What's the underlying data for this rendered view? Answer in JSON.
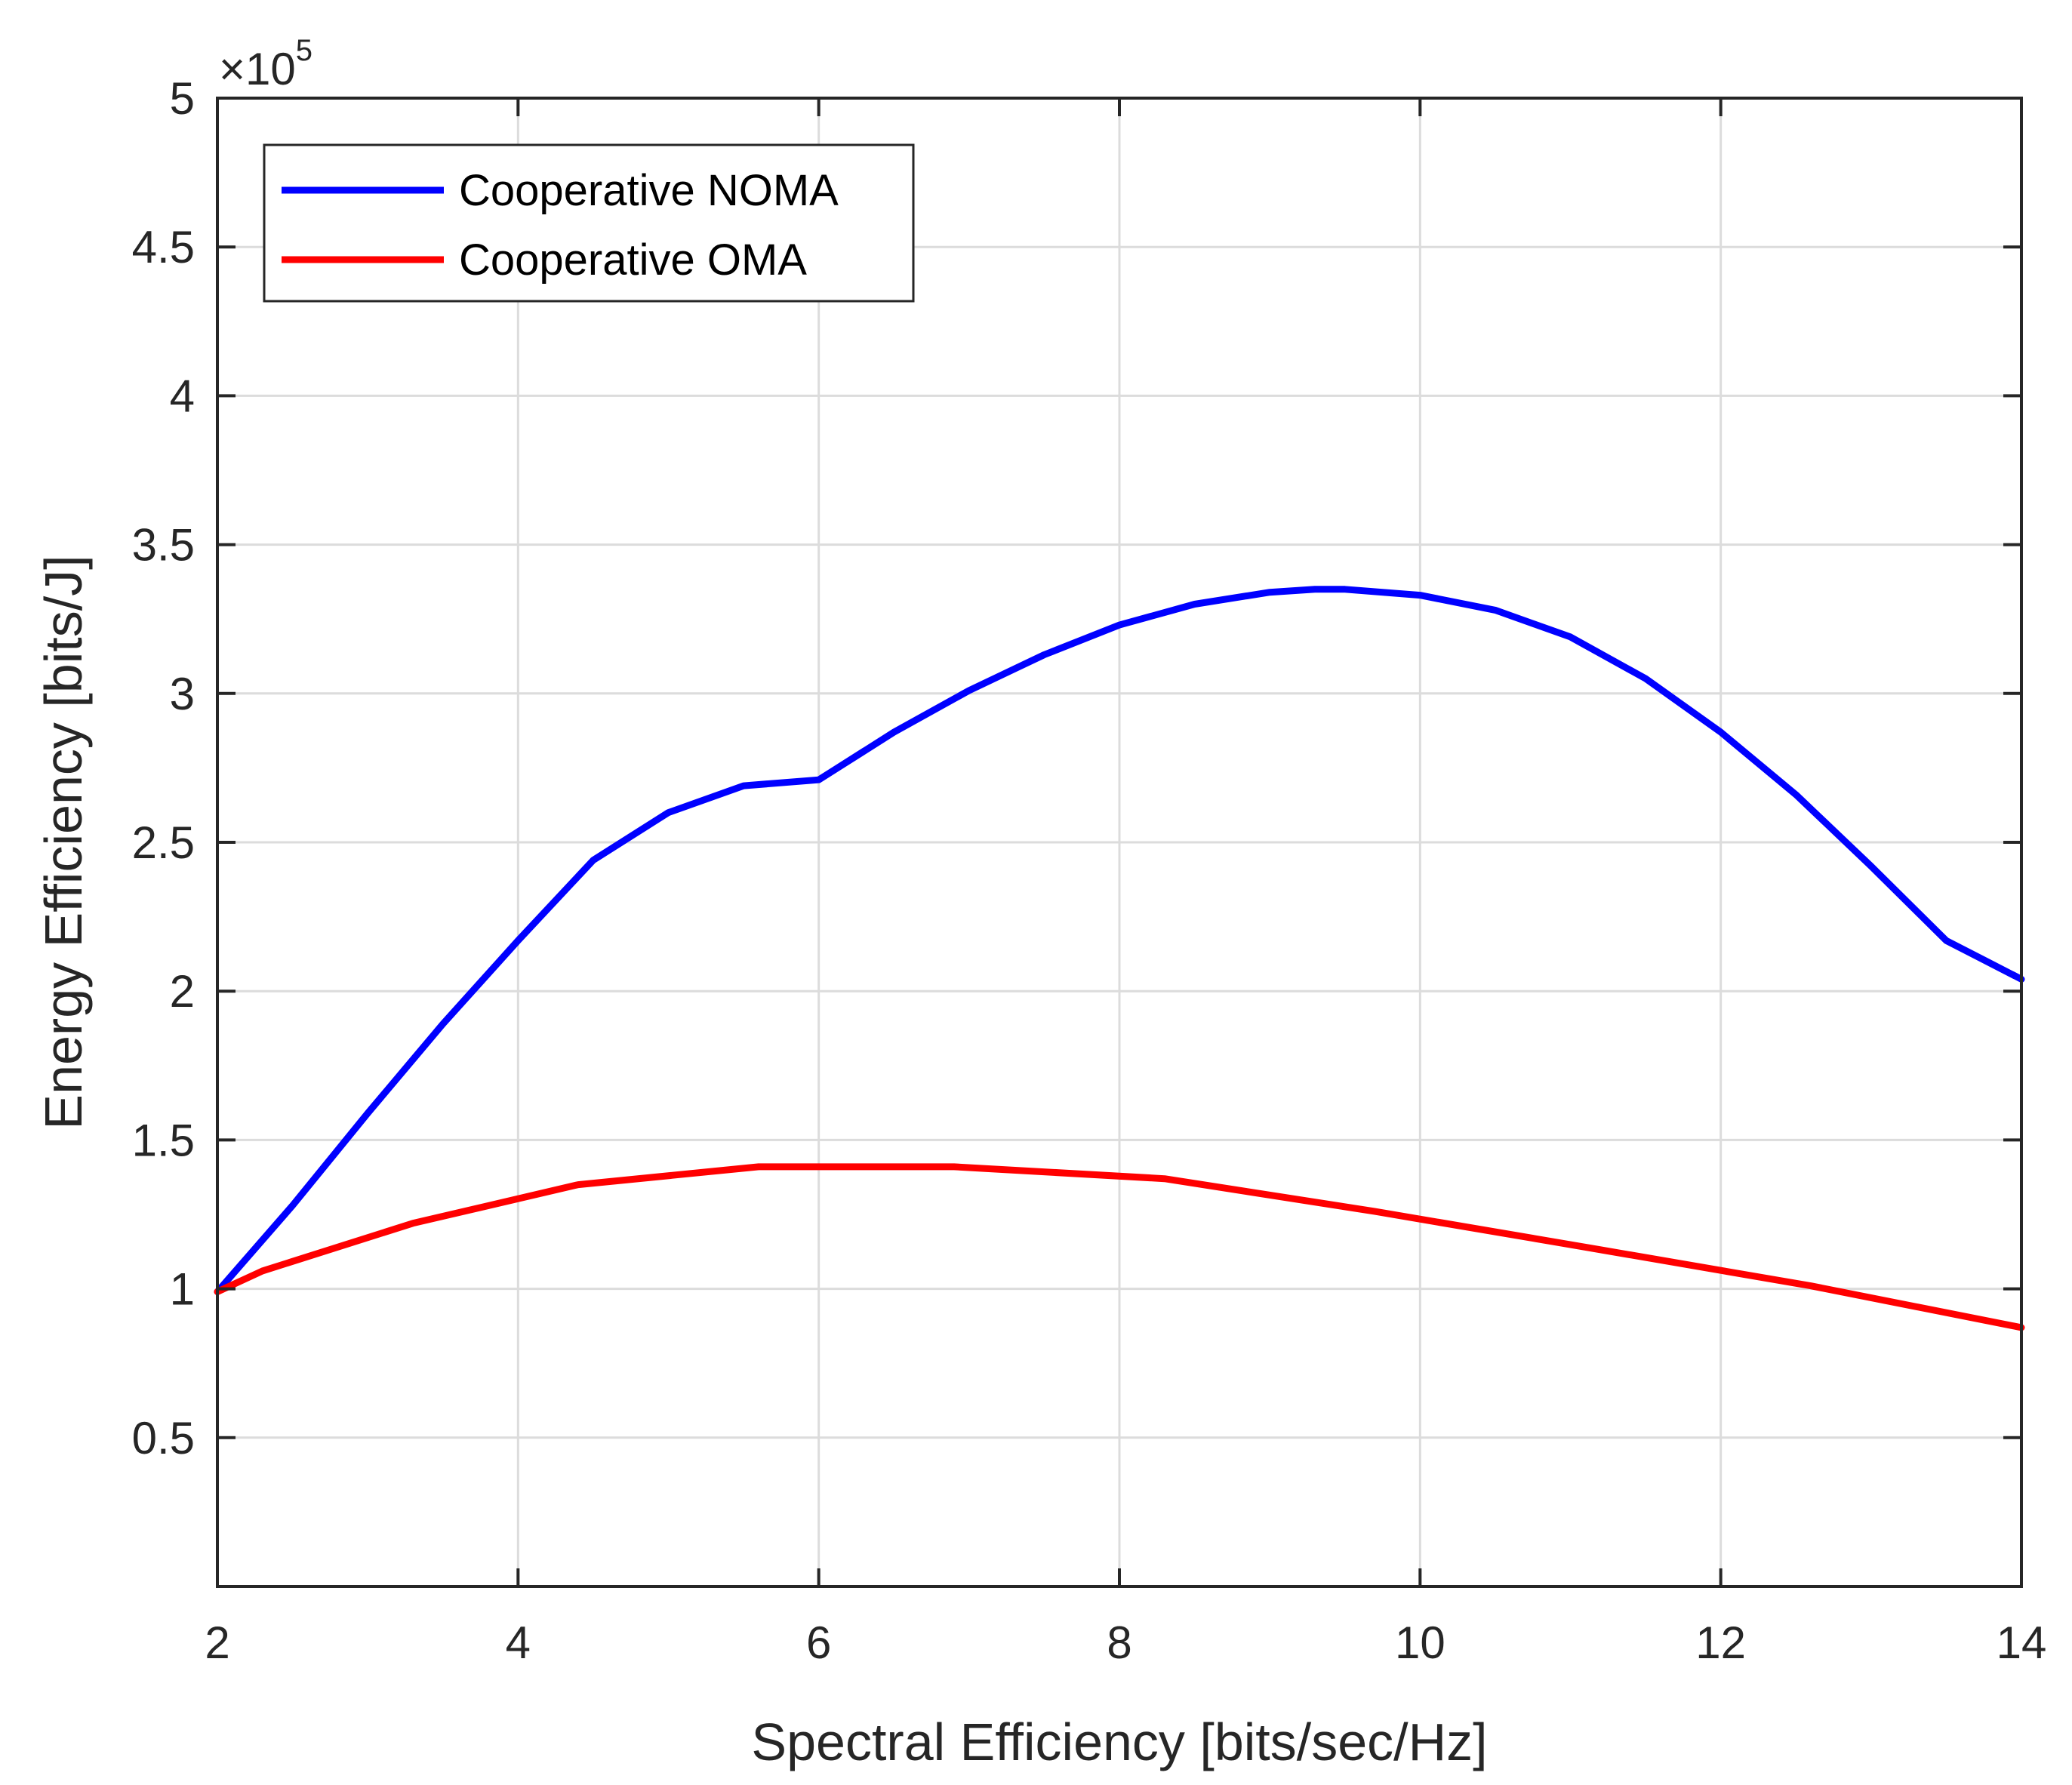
{
  "chart_data": {
    "type": "line",
    "xlabel": "Spectral Efficiency [bits/sec/Hz]",
    "ylabel": "Energy Efficiency [bits/J]",
    "xlim": [
      2,
      14
    ],
    "ylim": [
      0,
      5
    ],
    "y_multiplier": {
      "symbol": "×10",
      "exponent": "5"
    },
    "x_ticks": [
      2,
      4,
      6,
      8,
      10,
      12,
      14
    ],
    "x_tick_labels": [
      "2",
      "4",
      "6",
      "8",
      "10",
      "12",
      "14"
    ],
    "y_ticks": [
      0.5,
      1,
      1.5,
      2,
      2.5,
      3,
      3.5,
      4,
      4.5,
      5
    ],
    "y_tick_labels": [
      "0.5",
      "1",
      "1.5",
      "2",
      "2.5",
      "3",
      "3.5",
      "4",
      "4.5",
      "5"
    ],
    "grid": true,
    "legend_position": "top-left",
    "series": [
      {
        "name": "Cooperative NOMA",
        "color": "#0000ff",
        "x": [
          2,
          2.5,
          3,
          3.5,
          4,
          4.5,
          5,
          5.5,
          6,
          6.5,
          7,
          7.5,
          8,
          8.5,
          9,
          9.3,
          9.5,
          10,
          10.5,
          11,
          11.5,
          12,
          12.5,
          13,
          13.5,
          14
        ],
        "y": [
          0.99,
          1.28,
          1.59,
          1.89,
          2.17,
          2.44,
          2.6,
          2.69,
          2.71,
          2.87,
          3.01,
          3.13,
          3.23,
          3.3,
          3.34,
          3.35,
          3.35,
          3.33,
          3.28,
          3.19,
          3.05,
          2.87,
          2.66,
          2.42,
          2.17,
          2.04
        ]
      },
      {
        "name": "Cooperative OMA",
        "color": "#ff0000",
        "x": [
          2,
          2.3,
          3.3,
          4.4,
          5.6,
          6.9,
          8.3,
          9.7,
          11.1,
          12.6,
          14
        ],
        "y": [
          0.99,
          1.06,
          1.22,
          1.35,
          1.41,
          1.41,
          1.37,
          1.26,
          1.14,
          1.01,
          0.87
        ]
      }
    ]
  }
}
